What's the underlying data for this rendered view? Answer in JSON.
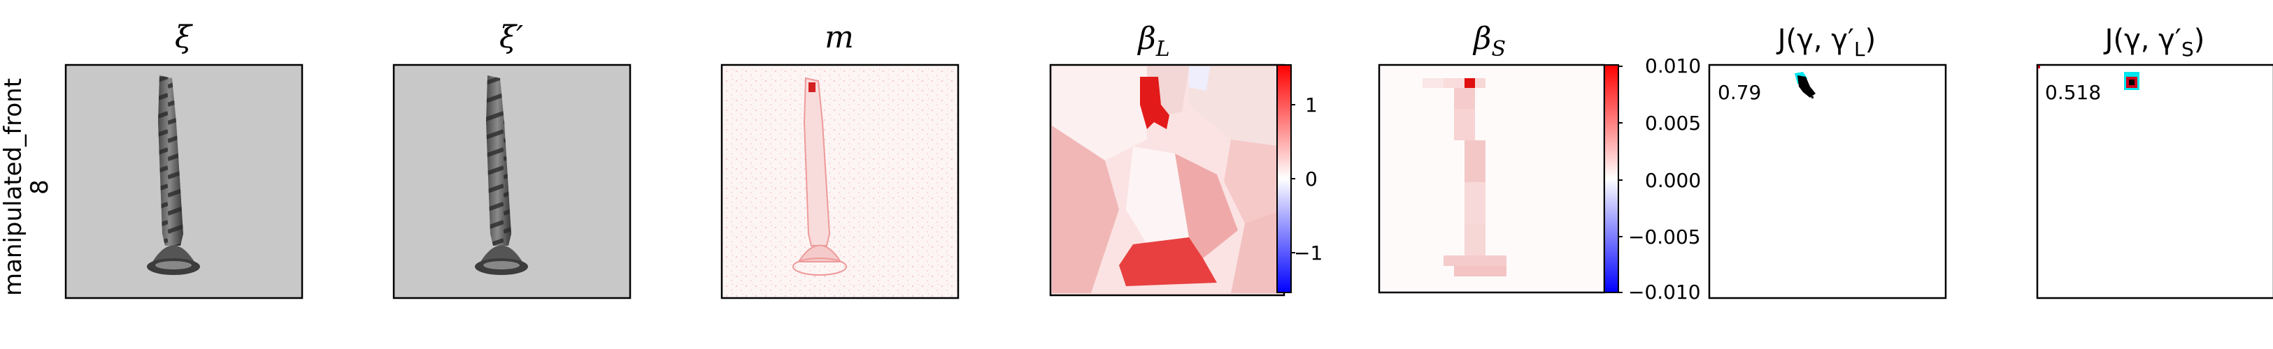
{
  "figure": {
    "row_label_line1": "manipulated_front",
    "row_label_line2": "8",
    "panels": {
      "xi": {
        "title": "ξ"
      },
      "xi_prime": {
        "title": "ξ′"
      },
      "m": {
        "title": "m"
      },
      "beta_L": {
        "title": "β",
        "subscript": "L"
      },
      "beta_S": {
        "title": "β",
        "subscript": "S"
      },
      "J_L": {
        "title": "J(γ, γ′",
        "subscript": "L",
        "title_end": ")",
        "score": "0.79"
      },
      "J_S": {
        "title": "J(γ, γ′",
        "subscript": "S",
        "title_end": ")",
        "score": "0.518"
      }
    },
    "colorbar_L": {
      "ticks": [
        "1",
        "0",
        "−1"
      ],
      "max_color": "#ff0000",
      "min_color": "#0000ff"
    },
    "colorbar_S": {
      "ticks": [
        "0.010",
        "0.005",
        "0.000",
        "−0.005",
        "−0.010"
      ],
      "max_color": "#ff0000",
      "min_color": "#0000ff"
    },
    "mask_colors": {
      "prediction": "#000000",
      "ground_truth": "#00e5ee",
      "overlap": "#d0021b"
    }
  }
}
